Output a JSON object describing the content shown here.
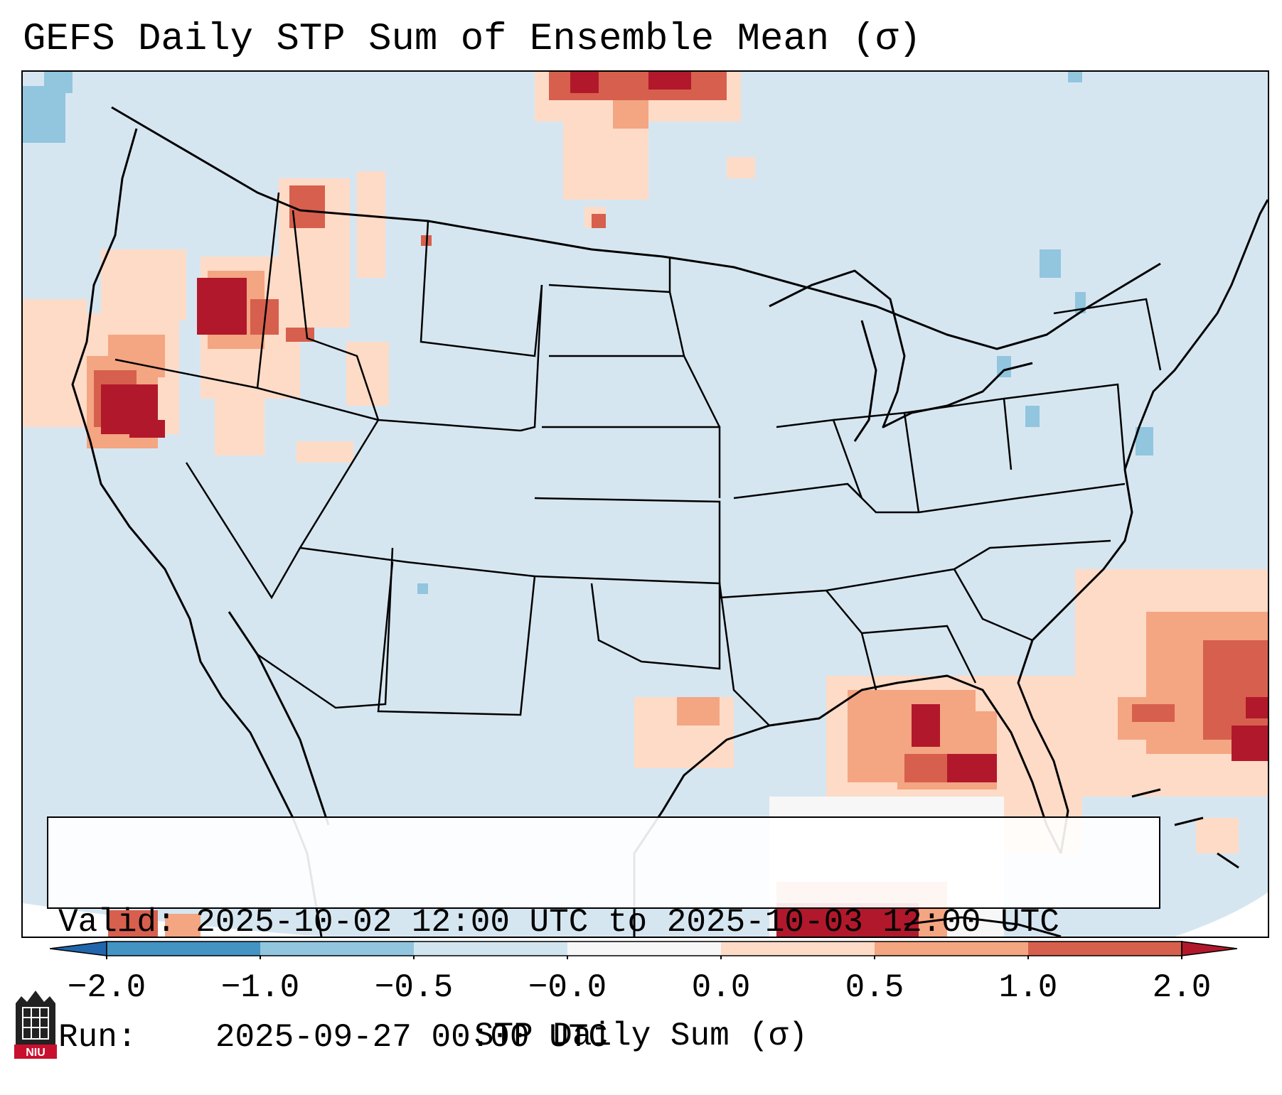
{
  "title": "GEFS Daily STP Sum of Ensemble Mean (σ)",
  "info": {
    "valid_label": "Valid:",
    "valid_value": "2025-10-02 12:00 UTC to 2025-10-03 12:00 UTC",
    "run_label": "Run:",
    "run_value": "2025-09-27 00:00 UTC"
  },
  "colorbar": {
    "label": "STP Daily Sum (σ)",
    "ticks": [
      "−2.0",
      "−1.0",
      "−0.5",
      "−0.0",
      "0.0",
      "0.5",
      "1.0",
      "2.0"
    ],
    "bins": [
      {
        "range": "-2.0 to -1.0",
        "color": "#4393c3"
      },
      {
        "range": "-1.0 to -0.5",
        "color": "#92c5de"
      },
      {
        "range": "-0.5 to -0.0",
        "color": "#d1e5f0"
      },
      {
        "range": "-0.0 to 0.0",
        "color": "#f7f7f7"
      },
      {
        "range": "0.0 to 0.5",
        "color": "#fddbc7"
      },
      {
        "range": "0.5 to 1.0",
        "color": "#f4a582"
      },
      {
        "range": "1.0 to 2.0",
        "color": "#d6604d"
      }
    ],
    "under_color": "#2166ac",
    "over_color": "#b2182b"
  },
  "map": {
    "background_color": "#d6e6f1",
    "region": "Continental United States"
  },
  "logo": {
    "text": "NIU",
    "color": "#c8102e"
  }
}
